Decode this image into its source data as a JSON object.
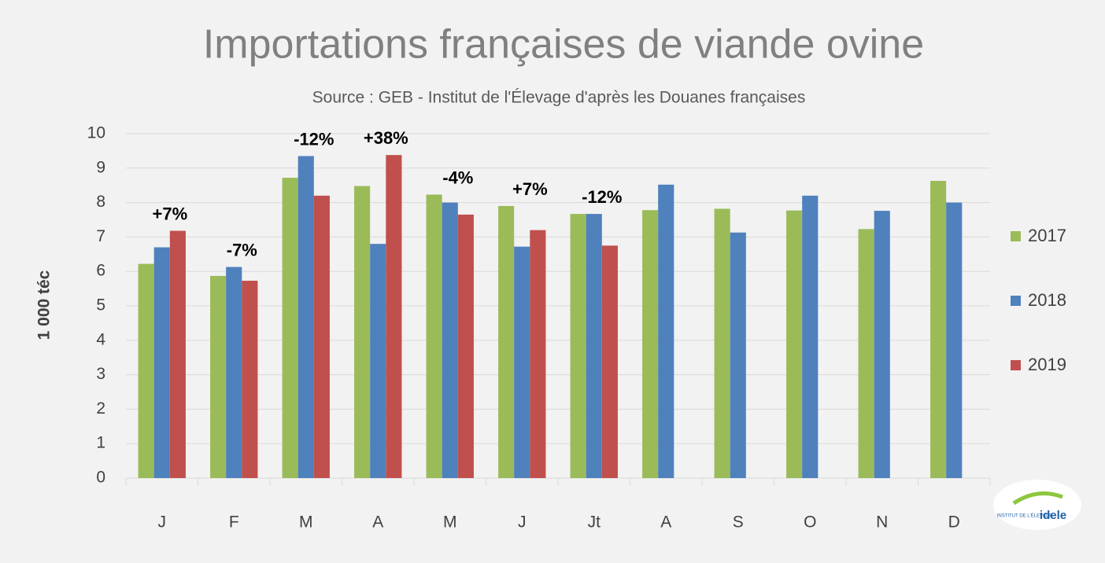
{
  "chart_data": {
    "type": "bar",
    "title": "Importations françaises de viande ovine",
    "subtitle": "Source : GEB - Institut de l'Élevage d'après les Douanes françaises",
    "y_label": "1 000 téc",
    "categories": [
      "J",
      "F",
      "M",
      "A",
      "M",
      "J",
      "Jt",
      "A",
      "S",
      "O",
      "N",
      "D"
    ],
    "series": [
      {
        "name": "2017",
        "color": "#9bbb59",
        "values": [
          6.22,
          5.87,
          8.72,
          8.48,
          8.23,
          7.9,
          7.67,
          7.78,
          7.82,
          7.77,
          7.23,
          8.63
        ]
      },
      {
        "name": "2018",
        "color": "#4f81bd",
        "values": [
          6.7,
          6.13,
          9.35,
          6.8,
          8.0,
          6.72,
          7.67,
          8.52,
          7.13,
          8.2,
          7.76,
          8.0
        ]
      },
      {
        "name": "2019",
        "color": "#c0504d",
        "values": [
          7.18,
          5.73,
          8.2,
          9.38,
          7.65,
          7.2,
          6.75,
          null,
          null,
          null,
          null,
          null
        ]
      }
    ],
    "annotations": [
      "+7%",
      "-7%",
      "-12%",
      "+38%",
      "-4%",
      "+7%",
      "-12%"
    ],
    "ylim": [
      0,
      10
    ],
    "yticks": [
      0,
      1,
      2,
      3,
      4,
      5,
      6,
      7,
      8,
      9,
      10
    ],
    "grid": true,
    "legend": "right",
    "logo": {
      "top": "INSTITUT DE L'ÉLEVAGE",
      "name": "idele"
    }
  }
}
